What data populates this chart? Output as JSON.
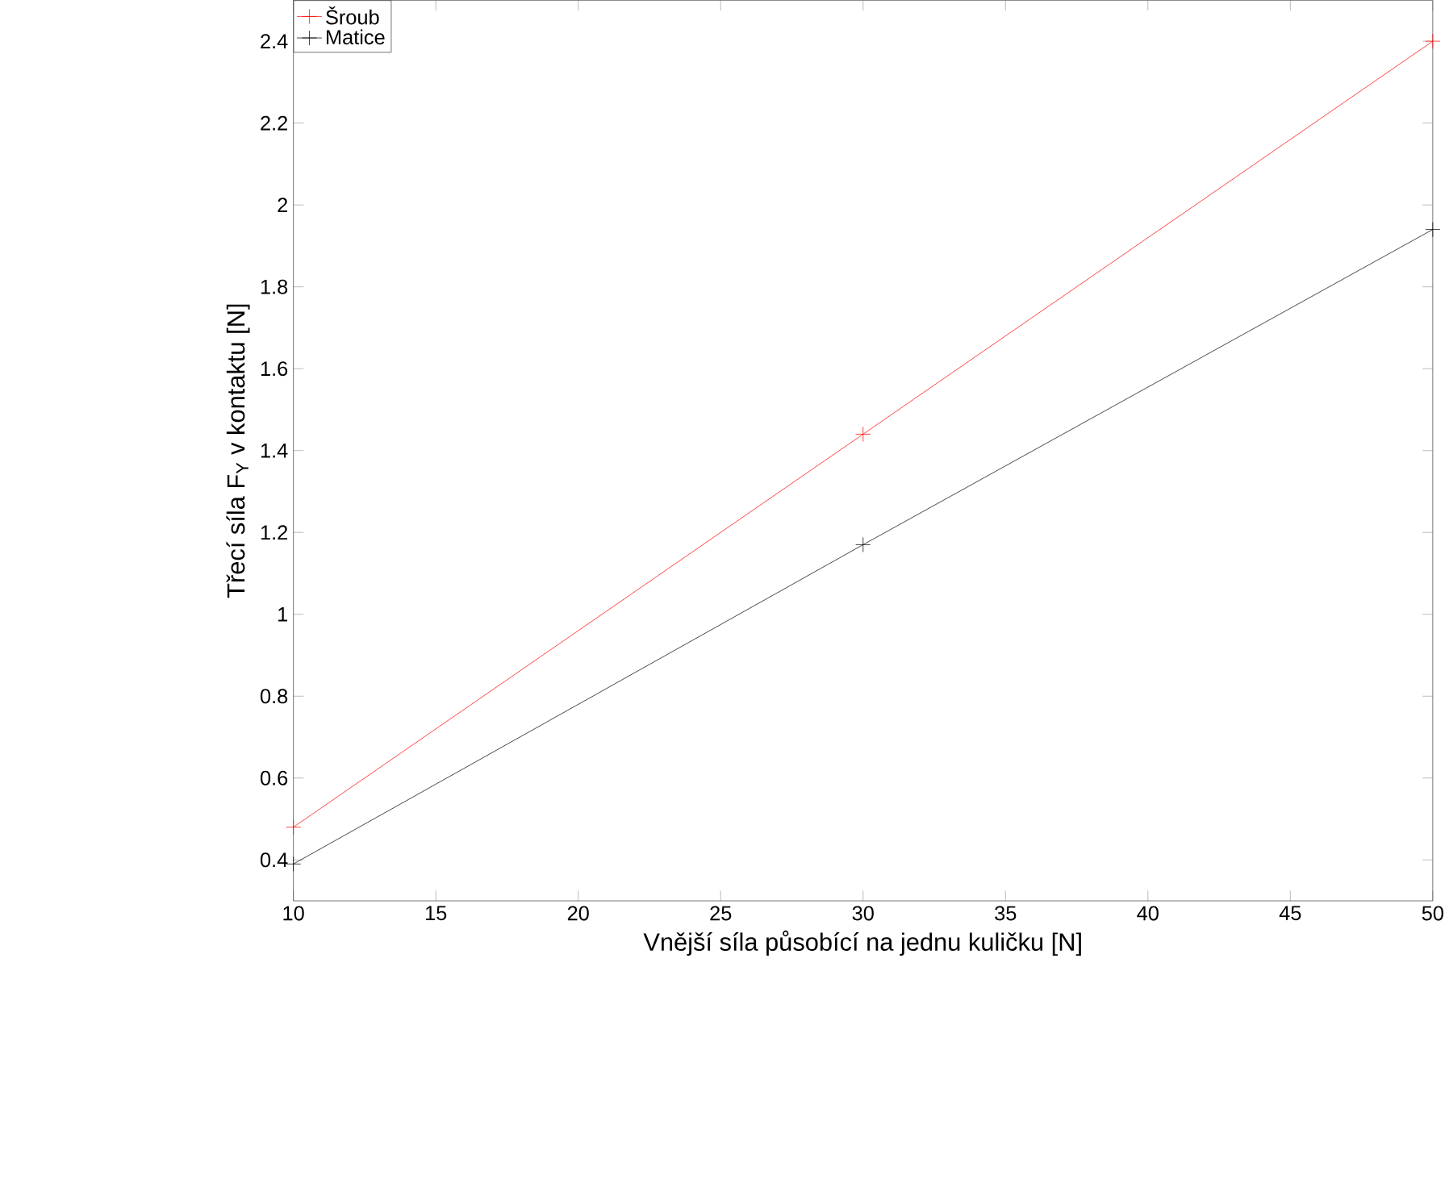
{
  "chart_data": {
    "type": "line",
    "xlabel": "Vnější síla působící na jednu kuličku [N]",
    "ylabel": "Třecí síla F$_{Y}$ v kontaktu [N]",
    "x": [
      10,
      30,
      50
    ],
    "series": [
      {
        "name": "Šroub",
        "color": "#ff0000",
        "values": [
          0.48,
          1.44,
          2.4
        ]
      },
      {
        "name": "Matice",
        "color": "#000000",
        "values": [
          0.39,
          1.17,
          1.94
        ]
      }
    ],
    "xlim": [
      10,
      50
    ],
    "ylim": [
      0.3,
      2.5
    ],
    "xticks": [
      10,
      15,
      20,
      25,
      30,
      35,
      40,
      45,
      50
    ],
    "yticks": [
      0.4,
      0.6,
      0.8,
      1,
      1.2,
      1.4,
      1.6,
      1.8,
      2,
      2.2,
      2.4
    ],
    "grid": false,
    "legend": "top left",
    "marker": "cross",
    "line_style": "solid"
  }
}
